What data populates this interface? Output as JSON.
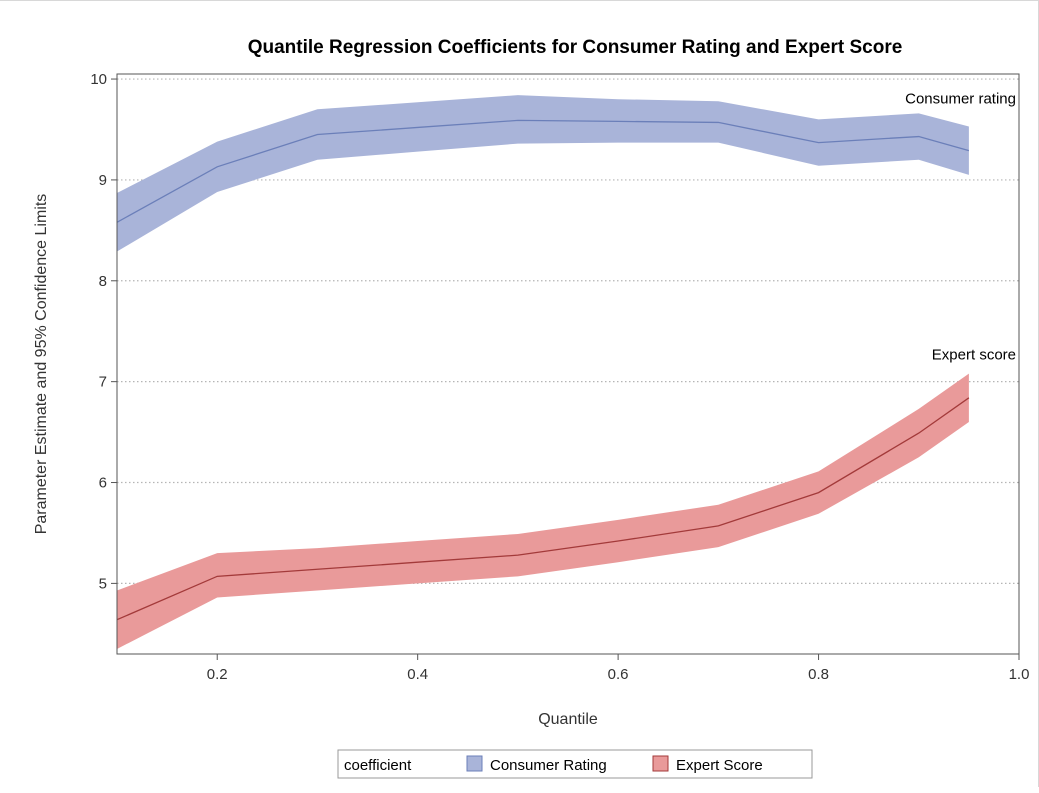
{
  "chart_data": {
    "type": "band",
    "title": "Quantile Regression Coefficients for Consumer Rating and Expert Score",
    "xlabel": "Quantile",
    "ylabel": "Parameter Estimate and 95% Confidence Limits",
    "xlim": [
      0.1,
      1.0
    ],
    "ylim": [
      4.3,
      10.05
    ],
    "xticks": [
      0.2,
      0.4,
      0.6,
      0.8,
      1.0
    ],
    "xtick_labels": [
      "0.2",
      "0.4",
      "0.6",
      "0.8",
      "1.0"
    ],
    "yticks": [
      5,
      6,
      7,
      8,
      9,
      10
    ],
    "ytick_labels": [
      "5",
      "6",
      "7",
      "8",
      "9",
      "10"
    ],
    "grid": "horizontal-dotted",
    "legend": {
      "title": "coefficient",
      "placement": "bottom-center",
      "entries": [
        "Consumer Rating",
        "Expert Score"
      ]
    },
    "series": [
      {
        "name": "Consumer Rating",
        "label": "Consumer rating",
        "color": "#6b7fb9",
        "fill": "#a9b4d9",
        "x": [
          0.1,
          0.2,
          0.3,
          0.4,
          0.5,
          0.6,
          0.7,
          0.8,
          0.9,
          0.95
        ],
        "y": [
          8.58,
          9.13,
          9.45,
          9.52,
          9.59,
          9.58,
          9.57,
          9.37,
          9.43,
          9.29
        ],
        "lower": [
          8.29,
          8.88,
          9.2,
          9.28,
          9.36,
          9.37,
          9.37,
          9.14,
          9.2,
          9.05
        ],
        "upper": [
          8.87,
          9.38,
          9.7,
          9.77,
          9.84,
          9.8,
          9.78,
          9.6,
          9.66,
          9.53
        ]
      },
      {
        "name": "Expert Score",
        "label": "Expert score",
        "color": "#a33a3a",
        "fill": "#e99a9a",
        "x": [
          0.1,
          0.2,
          0.3,
          0.4,
          0.5,
          0.6,
          0.7,
          0.8,
          0.9,
          0.95
        ],
        "y": [
          4.64,
          5.07,
          5.14,
          5.21,
          5.28,
          5.42,
          5.57,
          5.9,
          6.49,
          6.84
        ],
        "lower": [
          4.35,
          4.86,
          4.93,
          5.0,
          5.07,
          5.21,
          5.36,
          5.69,
          6.25,
          6.6
        ],
        "upper": [
          4.93,
          5.3,
          5.35,
          5.42,
          5.49,
          5.63,
          5.78,
          6.11,
          6.73,
          7.08
        ]
      }
    ]
  }
}
